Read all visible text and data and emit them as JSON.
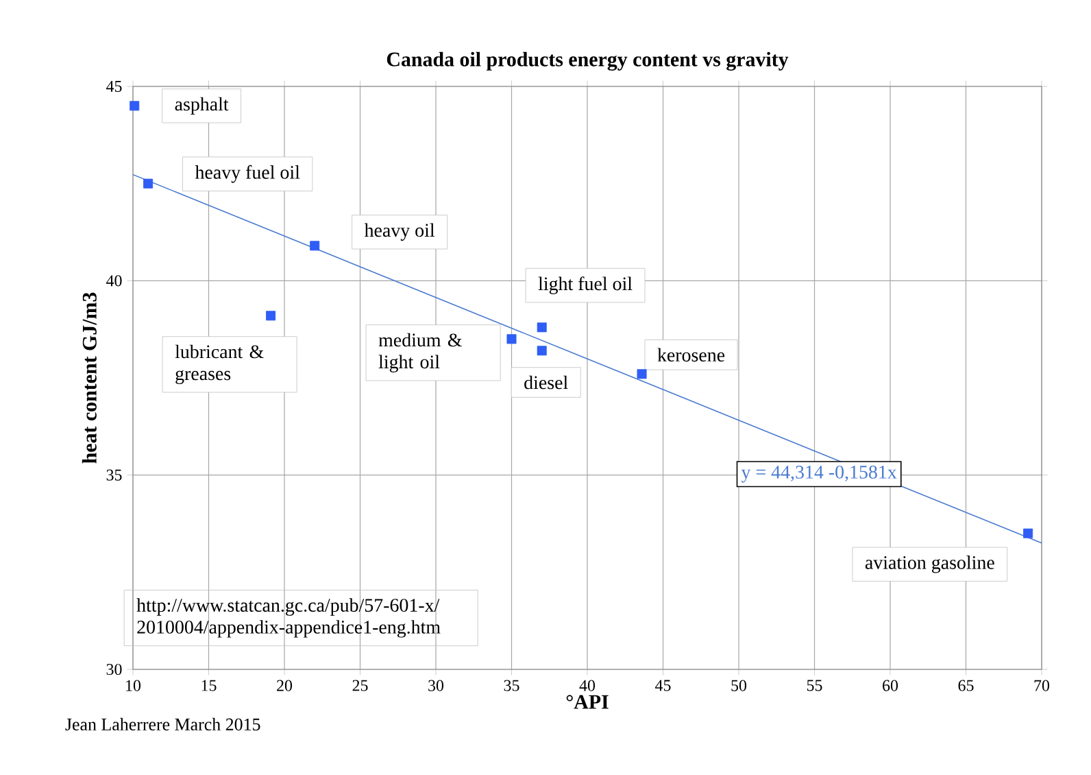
{
  "chart_data": {
    "type": "scatter",
    "title": "Canada oil products energy content vs gravity",
    "xlabel": "°API",
    "ylabel": "heat content GJ/m3",
    "xlim": [
      10,
      70
    ],
    "ylim": [
      30,
      45
    ],
    "xticks": [
      10,
      15,
      20,
      25,
      30,
      35,
      40,
      45,
      50,
      55,
      60,
      65,
      70
    ],
    "yticks": [
      30,
      35,
      40,
      45
    ],
    "grid": true,
    "marker": "square",
    "series": [
      {
        "color": "#2f5df5",
        "x": [
          10.1,
          11.0,
          22.0,
          19.1,
          35.0,
          37.0,
          37.0,
          43.6,
          69.1
        ],
        "values": [
          44.5,
          42.5,
          40.9,
          39.1,
          38.5,
          38.8,
          38.2,
          37.6,
          33.5
        ]
      },
      {
        "type": "line",
        "color": "#4a7bd0",
        "marker": "none",
        "line_style": "solid",
        "x": [
          10,
          70
        ],
        "values": [
          42.73,
          33.25
        ]
      }
    ],
    "annotations": [
      {
        "text": "asphalt",
        "x": 10.1,
        "y": 44.5
      },
      {
        "text": "heavy fuel oil",
        "x": 11.0,
        "y": 42.5
      },
      {
        "text": "heavy oil",
        "x": 22.0,
        "y": 40.9
      },
      {
        "text": "lubricant & greases",
        "x": 19.1,
        "y": 39.1
      },
      {
        "text": "medium & light oil",
        "x": 35.0,
        "y": 38.5
      },
      {
        "text": "light fuel oil",
        "x": 37.0,
        "y": 38.8
      },
      {
        "text": "diesel",
        "x": 37.0,
        "y": 38.2
      },
      {
        "text": "kerosene",
        "x": 43.6,
        "y": 37.6
      },
      {
        "text": "aviation gasoline",
        "x": 69.1,
        "y": 33.5
      },
      "y = 44,314 -0,1581x",
      "http://www.statcan.gc.ca/pub/57-601-x/ 2010004/appendix-appendice1-eng.htm",
      "Jean Laherrere March 2015"
    ]
  }
}
